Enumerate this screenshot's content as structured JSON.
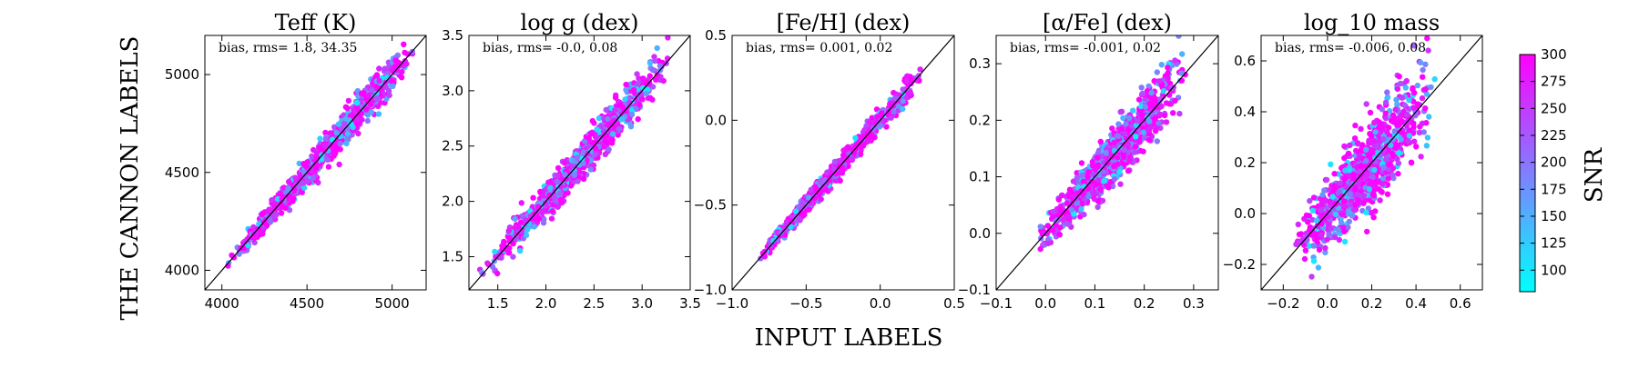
{
  "figure": {
    "ylabel": "THE CANNON LABELS",
    "xlabel": "INPUT LABELS",
    "colorbar": {
      "label": "SNR",
      "min": 80,
      "max": 300,
      "ticks": [
        "100",
        "125",
        "150",
        "175",
        "200",
        "225",
        "250",
        "275",
        "300"
      ],
      "colormap": "cool",
      "low_color": "#00ffff",
      "high_color": "#ff00ff"
    }
  },
  "chart_data": [
    {
      "type": "scatter",
      "title": "Teff (K)",
      "annotation": "bias, rms= 1.8, 34.35",
      "xlim": [
        3900,
        5200
      ],
      "ylim": [
        3900,
        5200
      ],
      "xticks": [
        4000,
        4500,
        5000
      ],
      "yticks": [
        4000,
        4500,
        5000
      ],
      "xtick_labels": [
        "4000",
        "4500",
        "5000"
      ],
      "ytick_labels": [
        "4000",
        "4500",
        "5000"
      ],
      "identity_line": true,
      "cluster": {
        "x_range": [
          4030,
          5150
        ],
        "scatter_y": 35,
        "n_points": 950
      }
    },
    {
      "type": "scatter",
      "title": "log g (dex)",
      "annotation": "bias, rms= -0.0, 0.08",
      "xlim": [
        1.2,
        3.5
      ],
      "ylim": [
        1.2,
        3.5
      ],
      "xticks": [
        1.5,
        2.0,
        2.5,
        3.0,
        3.5
      ],
      "yticks": [
        1.5,
        2.0,
        2.5,
        3.0,
        3.5
      ],
      "xtick_labels": [
        "1.5",
        "2.0",
        "2.5",
        "3.0",
        "3.5"
      ],
      "ytick_labels": [
        "1.5",
        "2.0",
        "2.5",
        "3.0",
        "3.5"
      ],
      "identity_line": true,
      "cluster": {
        "x_range": [
          1.35,
          3.3
        ],
        "scatter_y": 0.08,
        "n_points": 950
      }
    },
    {
      "type": "scatter",
      "title": "[Fe/H] (dex)",
      "annotation": "bias, rms= 0.001, 0.02",
      "xlim": [
        -1.0,
        0.5
      ],
      "ylim": [
        -1.0,
        0.5
      ],
      "xticks": [
        -1.0,
        -0.5,
        0.0,
        0.5
      ],
      "yticks": [
        -1.0,
        -0.5,
        0.0,
        0.5
      ],
      "xtick_labels": [
        "−1.0",
        "−0.5",
        "0.0",
        "0.5"
      ],
      "ytick_labels": [
        "−1.0",
        "−0.5",
        "0.0",
        "0.5"
      ],
      "identity_line": true,
      "cluster": {
        "x_range": [
          -0.85,
          0.3
        ],
        "scatter_y": 0.025,
        "n_points": 950
      }
    },
    {
      "type": "scatter",
      "title": "[α/Fe] (dex)",
      "annotation": "bias, rms= -0.001, 0.02",
      "xlim": [
        -0.1,
        0.35
      ],
      "ylim": [
        -0.1,
        0.35
      ],
      "xticks": [
        -0.1,
        0.0,
        0.1,
        0.2,
        0.3
      ],
      "yticks": [
        -0.1,
        0.0,
        0.1,
        0.2,
        0.3
      ],
      "xtick_labels": [
        "−0.1",
        "0.0",
        "0.1",
        "0.2",
        "0.3"
      ],
      "ytick_labels": [
        "−0.1",
        "0.0",
        "0.1",
        "0.2",
        "0.3"
      ],
      "identity_line": true,
      "cluster": {
        "x_range": [
          -0.02,
          0.29
        ],
        "scatter_y": 0.022,
        "n_points": 950
      }
    },
    {
      "type": "scatter",
      "title": "log_10 mass",
      "annotation": "bias, rms= -0.006, 0.08",
      "xlim": [
        -0.3,
        0.7
      ],
      "ylim": [
        -0.3,
        0.7
      ],
      "xticks": [
        -0.2,
        0.0,
        0.2,
        0.4,
        0.6
      ],
      "yticks": [
        -0.2,
        0.0,
        0.2,
        0.4,
        0.6
      ],
      "xtick_labels": [
        "−0.2",
        "0.0",
        "0.2",
        "0.4",
        "0.6"
      ],
      "ytick_labels": [
        "−0.2",
        "0.0",
        "0.2",
        "0.4",
        "0.6"
      ],
      "identity_line": true,
      "cluster": {
        "x_range": [
          -0.15,
          0.5
        ],
        "scatter_y": 0.08,
        "n_points": 950
      }
    }
  ]
}
